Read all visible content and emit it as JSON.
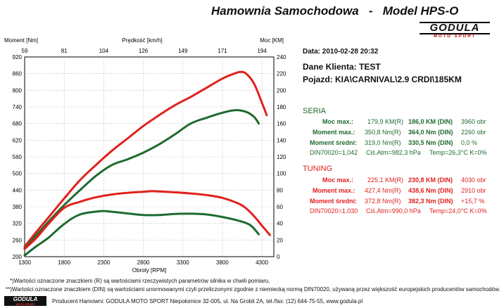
{
  "header": {
    "title": "Hamownia Samochodowa   -   Model HPS-O"
  },
  "logo": {
    "brand": "GODULA",
    "sub": "MOTO SPORT"
  },
  "info": {
    "date": "Data: 2010-02-28  20:32",
    "client": "Dane Klienta: TEST",
    "vehicle": "Pojazd: KIA\\CARNIVAL\\2.9 CRDI\\185KM"
  },
  "seria": {
    "title": "SERIA",
    "moc_label": "Moc max.:",
    "moc_r": "179,9 KM(R)",
    "moc_din": "186,0 KM (DIN)",
    "moc_rpm": "3960 obr",
    "mom_label": "Moment max.:",
    "mom_r": "350,8 Nm(R)",
    "mom_din": "364,0 Nm (DIN)",
    "mom_rpm": "2260 obr",
    "sr_label": "Moment średni:",
    "sr_r": "319,0 Nm(R)",
    "sr_din": "330,5 Nm (DIN)",
    "sr_pct": "0,0 %",
    "din": "DIN70020=1,042",
    "atm": "Ciś.Atm=982,3 hPa",
    "temp": "Temp=26,3°C  K=0%"
  },
  "tuning": {
    "title": "TUNING",
    "moc_label": "Moc max.:",
    "moc_r": "225,1 KM(R)",
    "moc_din": "230,8 KM (DIN)",
    "moc_rpm": "4030 obr",
    "mom_label": "Moment max.:",
    "mom_r": "427,4 Nm(R)",
    "mom_din": "438,6 Nm (DIN)",
    "mom_rpm": "2910 obr",
    "sr_label": "Moment średni:",
    "sr_r": "372,8 Nm(R)",
    "sr_din": "382,3 Nm (DIN)",
    "sr_pct": "+15,7 %",
    "din": "DIN70020=1,030",
    "atm": "Ciś.Atm=990,0 hPa",
    "temp": "Temp=24,0°C  K=0%"
  },
  "footer": {
    "note1": "*)Wartości oznaczone znaczkiem (R) są wartościami rzeczywistych parametrów silnika w chwili pomiaru.",
    "note2": "**)Wartości oznaczone znaczkiem (DIN) są wartościami unormowanymi czyli przeliczonymi zgodnie z niemiecką normą DIN70020, używaną przez większość europejskich producentów samochodów.",
    "producer": "Producent Hamowni: GODULA MOTO SPORT Niepołomice 32-005, ul. Na Grobli 2A, tel./fax: (12) 644-75-55, www.godula.pl",
    "logo_brand": "GODULA",
    "logo_sub": "MOTO SPORT"
  },
  "colors": {
    "seria": "#1e6b2e",
    "tuning": "#e0211d"
  },
  "chart_data": {
    "type": "line",
    "xlabel": "Obroty [RPM]",
    "top_xlabel": "Prędkość [km/h]",
    "ylabel_left": "Moment [Nm]",
    "ylabel_right": "Moc [KM]",
    "xlim": [
      1300,
      4450
    ],
    "ylim_left": [
      200,
      920
    ],
    "ylim_right": [
      0,
      240
    ],
    "x_ticks": [
      "1300",
      "1800",
      "2300",
      "2800",
      "3300",
      "3800",
      "4300"
    ],
    "x_tick_values": [
      1300,
      1800,
      2300,
      2800,
      3300,
      3800,
      4300
    ],
    "top_ticks": [
      "59",
      "81",
      "104",
      "126",
      "149",
      "171",
      "194"
    ],
    "left_ticks": [
      "920",
      "860",
      "800",
      "740",
      "680",
      "620",
      "560",
      "500",
      "440",
      "380",
      "320",
      "260",
      "200"
    ],
    "right_ticks": [
      "240",
      "220",
      "200",
      "180",
      "160",
      "140",
      "120",
      "100",
      "80",
      "60",
      "40",
      "20",
      "0"
    ],
    "series": [
      {
        "key": "tuning_moc",
        "axis": "right",
        "color": "#e0211d",
        "x": [
          1300,
          1450,
          1600,
          1800,
          2000,
          2200,
          2400,
          2600,
          2800,
          3000,
          3200,
          3400,
          3600,
          3800,
          3950,
          4030,
          4100,
          4200,
          4300,
          4360
        ],
        "y": [
          12,
          30,
          47,
          70,
          92,
          110,
          127,
          142,
          157,
          170,
          182,
          192,
          203,
          214,
          220,
          222,
          220,
          208,
          185,
          170
        ]
      },
      {
        "key": "seria_moc",
        "axis": "right",
        "color": "#1e6b2e",
        "x": [
          1300,
          1450,
          1600,
          1800,
          2000,
          2200,
          2400,
          2600,
          2800,
          3000,
          3200,
          3400,
          3600,
          3800,
          3960,
          4100,
          4200,
          4260
        ],
        "y": [
          10,
          26,
          42,
          62,
          80,
          97,
          110,
          117,
          125,
          135,
          147,
          160,
          167,
          173,
          176,
          174,
          168,
          160
        ]
      },
      {
        "key": "tuning_moment",
        "axis": "left",
        "color": "#e0211d",
        "x": [
          1300,
          1450,
          1600,
          1800,
          2000,
          2200,
          2400,
          2600,
          2800,
          2910,
          3000,
          3200,
          3400,
          3600,
          3800,
          4000,
          4100,
          4200,
          4300,
          4400
        ],
        "y": [
          228,
          268,
          318,
          376,
          398,
          414,
          424,
          430,
          434,
          436,
          435,
          432,
          428,
          422,
          412,
          392,
          374,
          346,
          312,
          278
        ]
      },
      {
        "key": "seria_moment",
        "axis": "left",
        "color": "#1e6b2e",
        "x": [
          1300,
          1450,
          1600,
          1800,
          2000,
          2260,
          2400,
          2600,
          2800,
          3000,
          3200,
          3400,
          3600,
          3800,
          4000,
          4150,
          4260
        ],
        "y": [
          205,
          238,
          268,
          318,
          352,
          364,
          362,
          356,
          350,
          350,
          354,
          355,
          352,
          343,
          330,
          314,
          281
        ]
      }
    ]
  }
}
